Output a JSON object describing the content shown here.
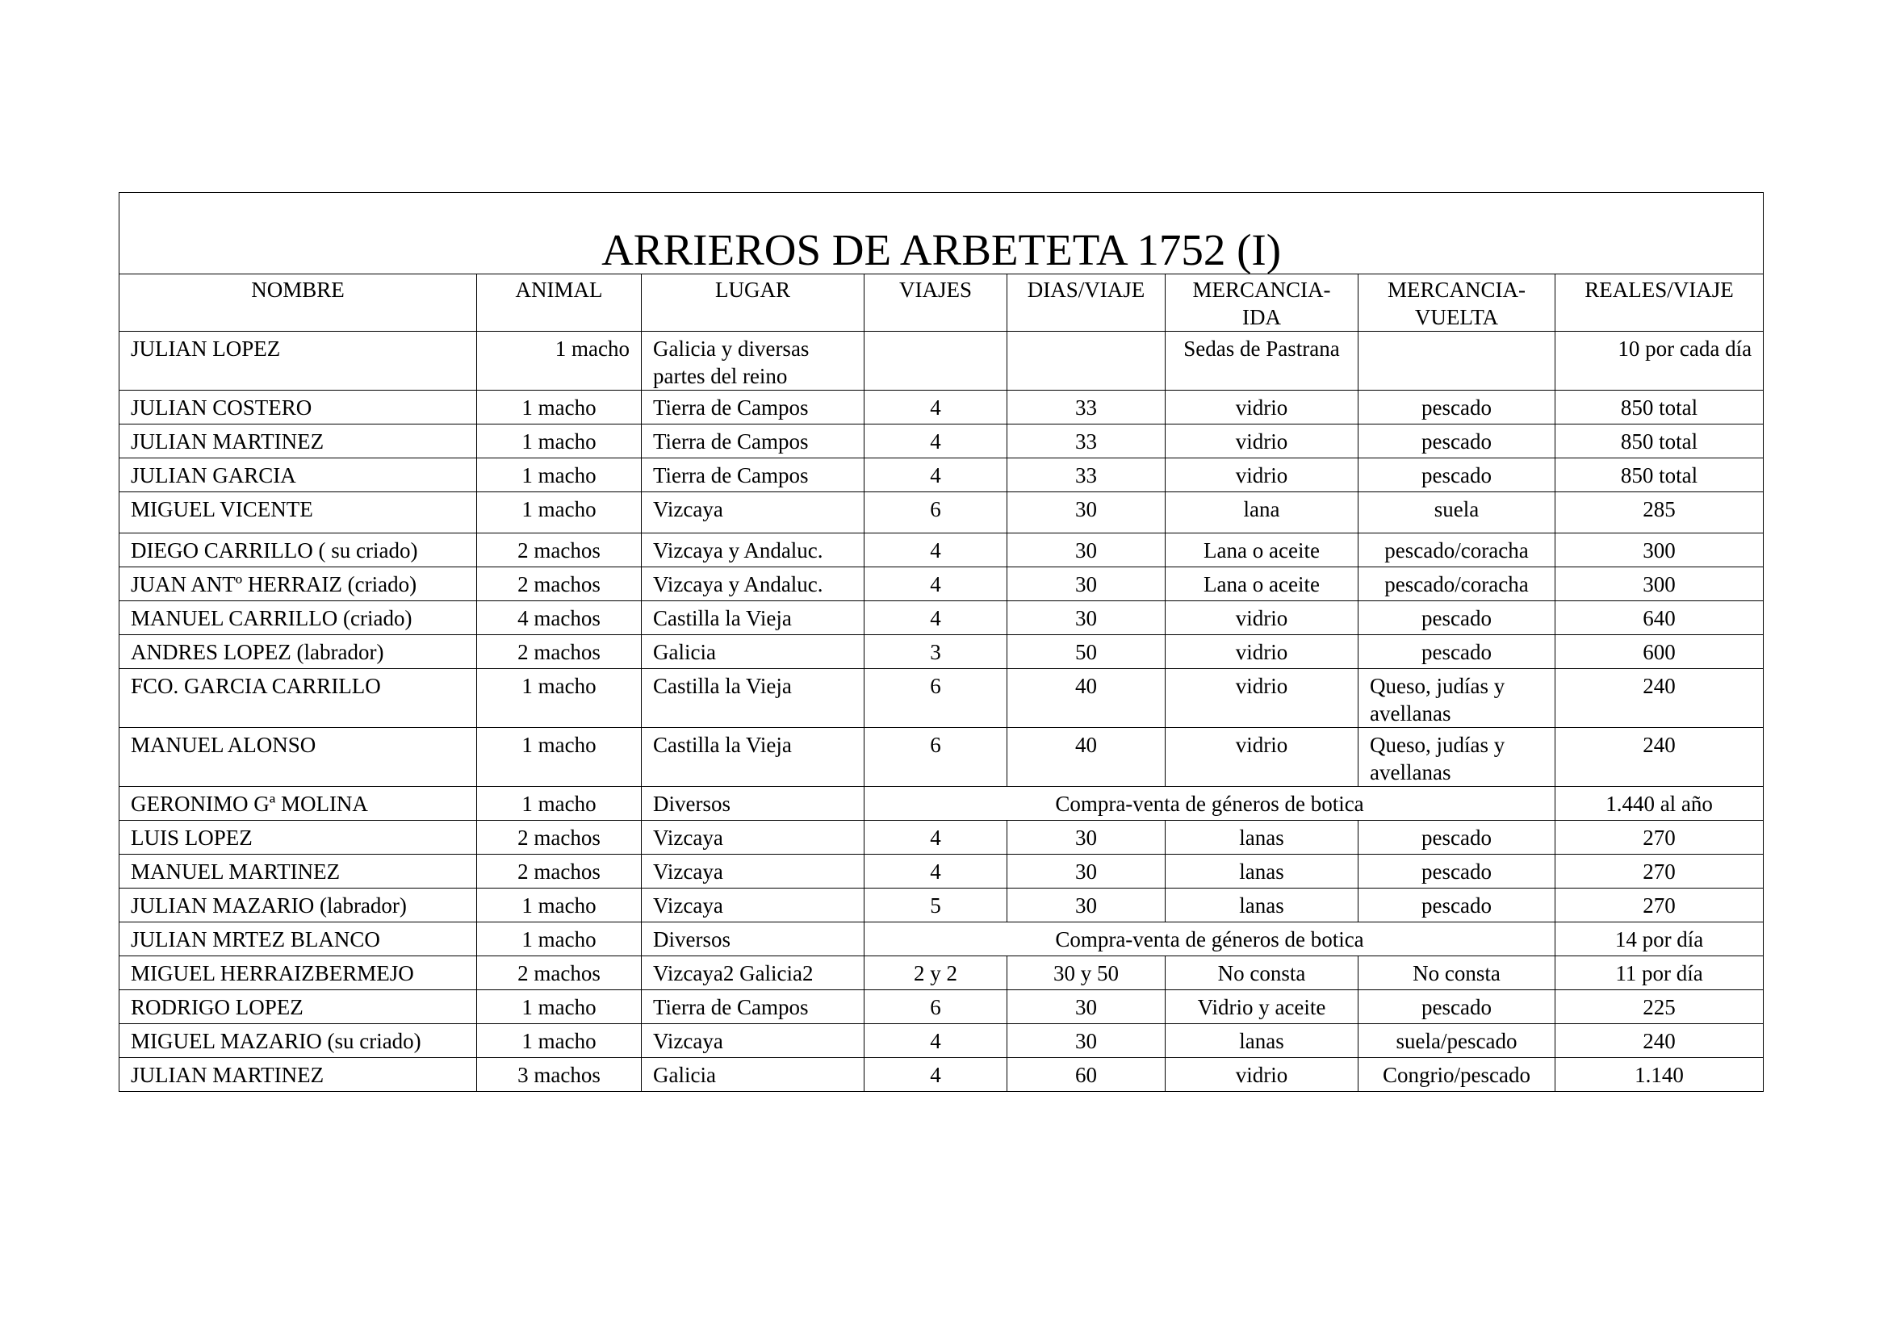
{
  "title": "ARRIEROS DE ARBETETA    1752 (I)",
  "headers": [
    "NOMBRE",
    "ANIMAL",
    "LUGAR",
    "VIAJES",
    "DIAS/VIAJE",
    "MERCANCIA-\nIDA",
    "MERCANCIA-\nVUELTA",
    "REALES/VIAJE"
  ],
  "rows": [
    [
      "JULIAN LOPEZ",
      "1 macho",
      "Galicia y diversas partes del reino",
      "",
      "",
      "Sedas de Pastrana",
      "",
      "10 por cada día"
    ],
    [
      "JULIAN COSTERO",
      "1 macho",
      "Tierra de Campos",
      "4",
      "33",
      "vidrio",
      "pescado",
      "850 total"
    ],
    [
      "JULIAN MARTINEZ",
      "1 macho",
      "Tierra de Campos",
      "4",
      "33",
      "vidrio",
      "pescado",
      "850 total"
    ],
    [
      "JULIAN GARCIA",
      "1 macho",
      "Tierra de Campos",
      "4",
      "33",
      "vidrio",
      "pescado",
      "850 total"
    ],
    [
      "MIGUEL VICENTE",
      "1 macho",
      "Vizcaya",
      "6",
      "30",
      "lana",
      "suela",
      "285"
    ],
    [
      "DIEGO CARRILLO ( su criado)",
      "2 machos",
      "Vizcaya y Andaluc.",
      "4",
      "30",
      "Lana o aceite",
      "pescado/coracha",
      "300"
    ],
    [
      "JUAN ANTº HERRAIZ (criado)",
      "2 machos",
      "Vizcaya y Andaluc.",
      "4",
      "30",
      "Lana o aceite",
      "pescado/coracha",
      "300"
    ],
    [
      "MANUEL CARRILLO (criado)",
      "4 machos",
      "Castilla la Vieja",
      "4",
      "30",
      "vidrio",
      "pescado",
      "640"
    ],
    [
      "ANDRES LOPEZ (labrador)",
      "2 machos",
      "Galicia",
      "3",
      "50",
      "vidrio",
      "pescado",
      "600"
    ],
    [
      "FCO. GARCIA CARRILLO",
      "1 macho",
      "Castilla la Vieja",
      "6",
      "40",
      "vidrio",
      "Queso, judías y avellanas",
      "240"
    ],
    [
      "MANUEL ALONSO",
      "1 macho",
      "Castilla la Vieja",
      "6",
      "40",
      "vidrio",
      "Queso, judías y avellanas",
      "240"
    ],
    [
      "GERONIMO Gª MOLINA",
      "1 macho",
      "Diversos",
      "Compra-venta de géneros de botica",
      "1.440 al año"
    ],
    [
      "LUIS LOPEZ",
      "2 machos",
      "Vizcaya",
      "4",
      "30",
      "lanas",
      "pescado",
      "270"
    ],
    [
      "MANUEL MARTINEZ",
      "2 machos",
      "Vizcaya",
      "4",
      "30",
      "lanas",
      "pescado",
      "270"
    ],
    [
      "JULIAN MAZARIO (labrador)",
      "1 macho",
      "Vizcaya",
      "5",
      "30",
      "lanas",
      "pescado",
      "270"
    ],
    [
      "JULIAN MRTEZ BLANCO",
      "1 macho",
      "Diversos",
      "Compra-venta de géneros de botica",
      "14 por día"
    ],
    [
      "MIGUEL HERRAIZBERMEJO",
      "2 machos",
      "Vizcaya2 Galicia2",
      "2 y 2",
      "30 y 50",
      "No consta",
      "No consta",
      "11 por día"
    ],
    [
      "RODRIGO LOPEZ",
      "1 macho",
      "Tierra de Campos",
      "6",
      "30",
      "Vidrio y aceite",
      "pescado",
      "225"
    ],
    [
      "MIGUEL MAZARIO (su criado)",
      "1 macho",
      "Vizcaya",
      "4",
      "30",
      "lanas",
      "suela/pescado",
      "240"
    ],
    [
      "JULIAN MARTINEZ",
      "3 machos",
      "Galicia",
      "4",
      "60",
      "vidrio",
      "Congrio/pescado",
      "1.140"
    ]
  ]
}
